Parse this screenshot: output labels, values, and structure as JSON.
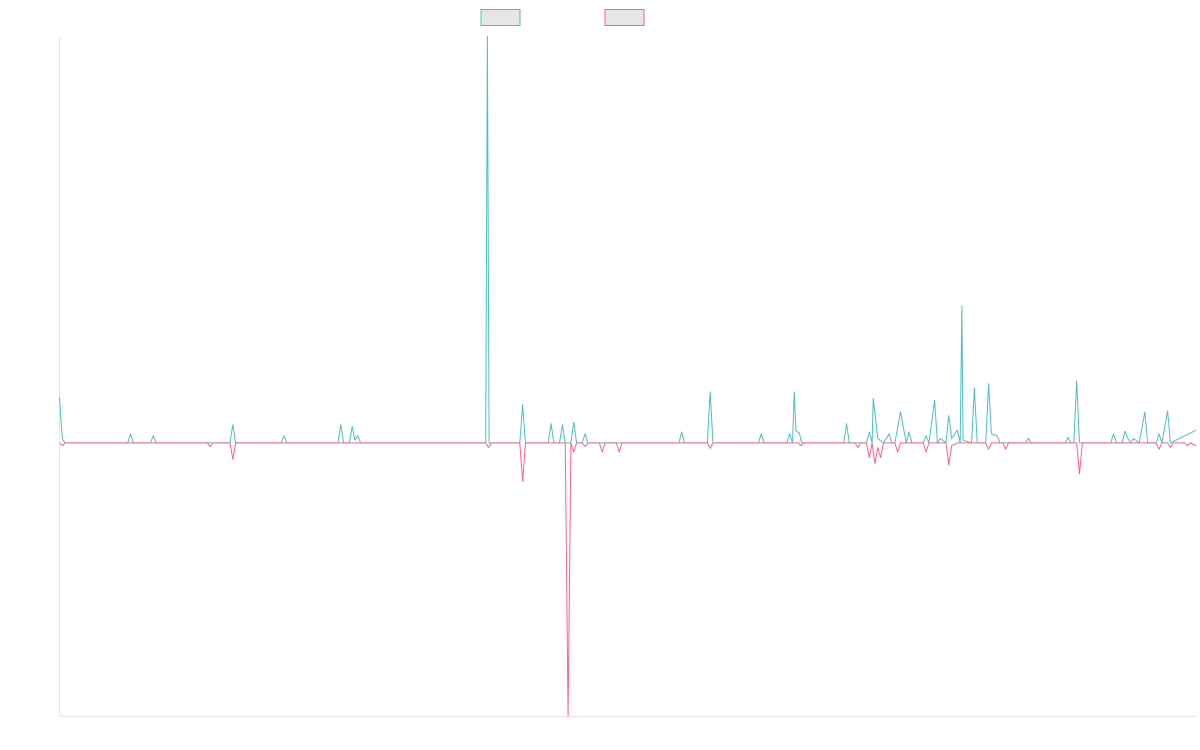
{
  "chart_data": {
    "type": "line",
    "title": "",
    "xlabel": "",
    "ylabel": "",
    "grid": false,
    "legend_position": "top-center",
    "x_domain": [
      0,
      200
    ],
    "ylim": [
      -30,
      44.7
    ],
    "series": [
      {
        "color": "#4bc0c0",
        "legend_fill": "#e6e6e6",
        "points": [
          [
            0,
            5
          ],
          [
            0.5,
            0.4
          ],
          [
            1,
            0
          ],
          [
            12,
            0
          ],
          [
            12.5,
            1
          ],
          [
            13,
            0
          ],
          [
            16,
            0
          ],
          [
            16.5,
            0.8
          ],
          [
            17,
            0
          ],
          [
            30,
            0
          ],
          [
            30.5,
            2
          ],
          [
            31,
            0
          ],
          [
            39,
            0
          ],
          [
            39.5,
            0.8
          ],
          [
            40,
            0
          ],
          [
            49,
            0
          ],
          [
            49.5,
            2
          ],
          [
            50,
            0
          ],
          [
            51,
            0
          ],
          [
            51.5,
            1.8
          ],
          [
            52,
            0.3
          ],
          [
            52.5,
            0.8
          ],
          [
            53,
            0
          ],
          [
            75,
            0
          ],
          [
            75.3,
            44.7
          ],
          [
            75.6,
            0
          ],
          [
            81,
            0
          ],
          [
            81.5,
            4.2
          ],
          [
            82,
            0
          ],
          [
            86,
            0
          ],
          [
            86.5,
            2.1
          ],
          [
            87,
            0
          ],
          [
            88,
            0
          ],
          [
            88.5,
            2
          ],
          [
            89,
            0
          ],
          [
            90,
            0
          ],
          [
            90.5,
            2.3
          ],
          [
            91,
            0
          ],
          [
            92,
            0
          ],
          [
            92.5,
            1
          ],
          [
            93,
            0
          ],
          [
            109,
            0
          ],
          [
            109.5,
            1.2
          ],
          [
            110,
            0
          ],
          [
            114,
            0
          ],
          [
            114.5,
            5.6
          ],
          [
            115,
            0
          ],
          [
            123,
            0
          ],
          [
            123.5,
            1
          ],
          [
            124,
            0
          ],
          [
            128,
            0
          ],
          [
            128.5,
            1
          ],
          [
            129,
            0
          ],
          [
            129.3,
            5.6
          ],
          [
            129.6,
            1.3
          ],
          [
            130.2,
            1.1
          ],
          [
            130.6,
            0
          ],
          [
            138,
            0
          ],
          [
            138.5,
            2.1
          ],
          [
            139,
            0
          ],
          [
            142,
            0
          ],
          [
            142.5,
            1.2
          ],
          [
            143,
            0
          ],
          [
            143.2,
            4.9
          ],
          [
            144,
            0.5
          ],
          [
            145,
            0
          ],
          [
            146,
            1
          ],
          [
            146.5,
            0
          ],
          [
            147,
            0
          ],
          [
            148,
            3.4
          ],
          [
            149,
            0
          ],
          [
            149.5,
            1.2
          ],
          [
            150,
            0
          ],
          [
            152,
            0
          ],
          [
            152.5,
            0.8
          ],
          [
            153,
            0
          ],
          [
            154,
            4.7
          ],
          [
            154.5,
            0
          ],
          [
            155,
            0.5
          ],
          [
            156,
            0
          ],
          [
            156.5,
            3
          ],
          [
            157,
            0.5
          ],
          [
            158,
            1.4
          ],
          [
            158.5,
            0
          ],
          [
            158.8,
            15
          ],
          [
            159,
            0.3
          ],
          [
            160.5,
            0
          ],
          [
            161,
            6
          ],
          [
            161.5,
            0
          ],
          [
            163,
            0
          ],
          [
            163.5,
            6.5
          ],
          [
            164,
            1
          ],
          [
            165,
            0.8
          ],
          [
            165.5,
            0
          ],
          [
            170,
            0
          ],
          [
            170.5,
            0.5
          ],
          [
            171,
            0
          ],
          [
            177,
            0
          ],
          [
            177.5,
            0.6
          ],
          [
            178,
            0
          ],
          [
            178.5,
            0
          ],
          [
            179,
            6.8
          ],
          [
            179.5,
            0
          ],
          [
            185,
            0
          ],
          [
            185.5,
            1
          ],
          [
            186,
            0
          ],
          [
            187,
            0
          ],
          [
            187.5,
            1.3
          ],
          [
            188,
            0.5
          ],
          [
            188.5,
            0
          ],
          [
            189,
            0.5
          ],
          [
            190,
            0
          ],
          [
            191,
            3.4
          ],
          [
            191.5,
            0
          ],
          [
            193,
            0
          ],
          [
            193.5,
            1
          ],
          [
            194,
            0
          ],
          [
            195,
            3.5
          ],
          [
            195.5,
            0
          ],
          [
            200,
            1.4
          ]
        ]
      },
      {
        "color": "#ff6384",
        "legend_fill": "#e6e6e6",
        "points": [
          [
            0,
            0
          ],
          [
            0.5,
            -0.3
          ],
          [
            1,
            0
          ],
          [
            26,
            0
          ],
          [
            26.5,
            -0.4
          ],
          [
            27,
            0
          ],
          [
            30,
            0
          ],
          [
            30.5,
            -1.8
          ],
          [
            31,
            0
          ],
          [
            75,
            0
          ],
          [
            75.5,
            -0.5
          ],
          [
            76,
            0
          ],
          [
            81,
            0
          ],
          [
            81.5,
            -4.2
          ],
          [
            82,
            0
          ],
          [
            89,
            0
          ],
          [
            89.5,
            -30
          ],
          [
            90,
            0
          ],
          [
            90.5,
            -1
          ],
          [
            91,
            0
          ],
          [
            92,
            0
          ],
          [
            92.5,
            -0.4
          ],
          [
            93,
            0
          ],
          [
            95,
            0
          ],
          [
            95.5,
            -1
          ],
          [
            96,
            0
          ],
          [
            98,
            0
          ],
          [
            98.5,
            -1
          ],
          [
            99,
            0
          ],
          [
            114,
            0
          ],
          [
            114.5,
            -0.6
          ],
          [
            115,
            0
          ],
          [
            130,
            0
          ],
          [
            130.5,
            -0.3
          ],
          [
            131,
            0
          ],
          [
            140,
            0
          ],
          [
            140.5,
            -0.5
          ],
          [
            141,
            0
          ],
          [
            142,
            0
          ],
          [
            142.5,
            -1.6
          ],
          [
            143,
            0
          ],
          [
            143.5,
            -2.3
          ],
          [
            144,
            -0.5
          ],
          [
            144.5,
            -1.6
          ],
          [
            145,
            0
          ],
          [
            147,
            0
          ],
          [
            147.5,
            -1
          ],
          [
            148,
            0
          ],
          [
            152,
            0
          ],
          [
            152.5,
            -1
          ],
          [
            153,
            0
          ],
          [
            156,
            0
          ],
          [
            156.5,
            -2.4
          ],
          [
            157,
            -0.3
          ],
          [
            158,
            0
          ],
          [
            163,
            0
          ],
          [
            163.5,
            -0.7
          ],
          [
            164,
            0
          ],
          [
            166,
            0
          ],
          [
            166.5,
            -0.7
          ],
          [
            167,
            0
          ],
          [
            179,
            0
          ],
          [
            179.5,
            -3.4
          ],
          [
            180,
            0
          ],
          [
            193,
            0
          ],
          [
            193.5,
            -0.7
          ],
          [
            194,
            0
          ],
          [
            195,
            0
          ],
          [
            195.5,
            -0.5
          ],
          [
            196,
            0
          ],
          [
            198,
            0
          ],
          [
            198.5,
            -0.3
          ],
          [
            199,
            0
          ],
          [
            200,
            -0.3
          ]
        ]
      }
    ]
  }
}
